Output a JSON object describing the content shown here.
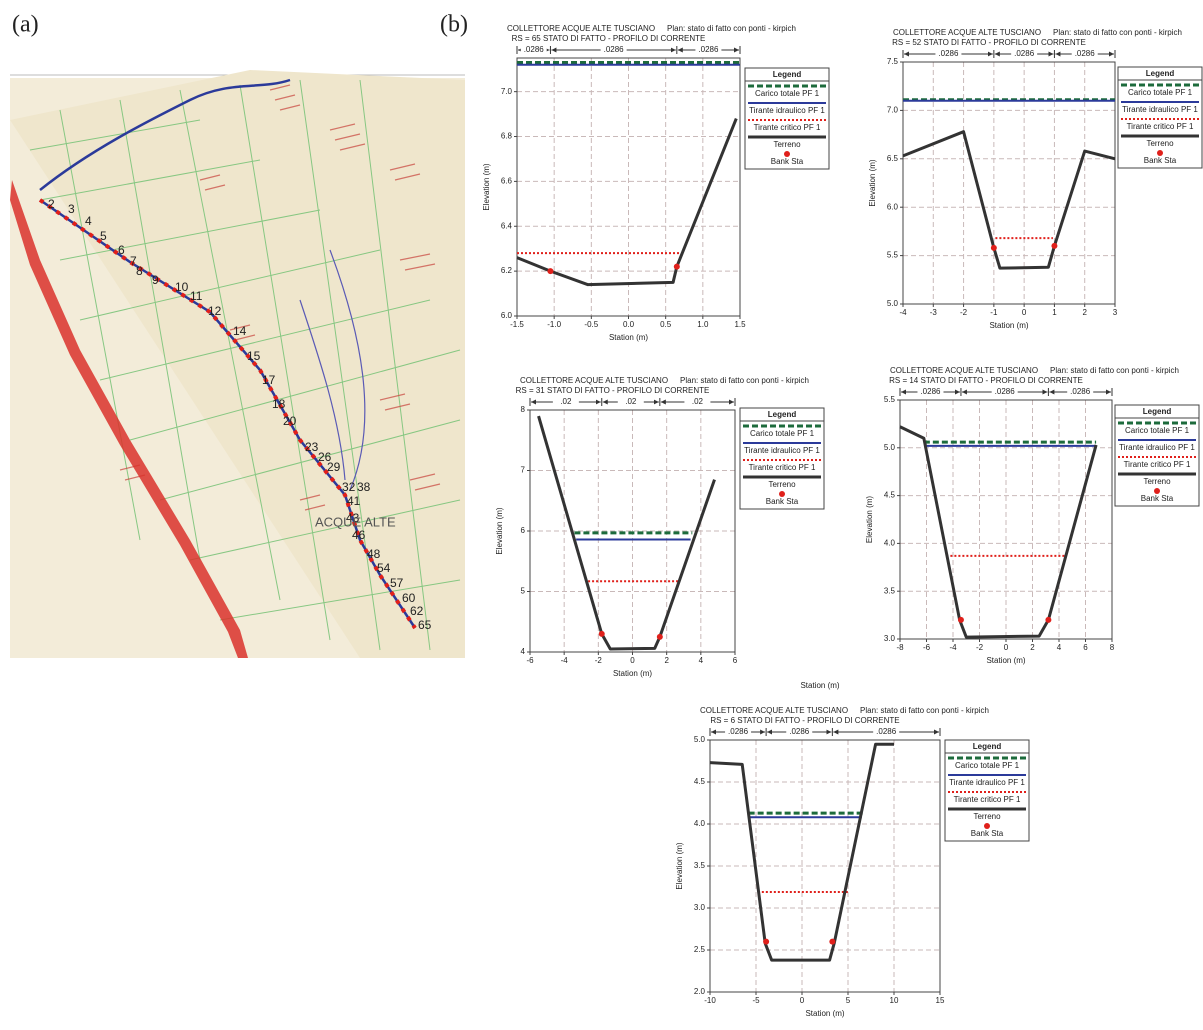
{
  "panels": {
    "a": "(a)",
    "b": "(b)"
  },
  "map": {
    "labels": [
      "2",
      "3",
      "4",
      "5",
      "6",
      "7",
      "8",
      "9",
      "10",
      "11",
      "12",
      "14",
      "15",
      "17",
      "18",
      "20",
      "23",
      "26",
      "29",
      "32",
      "38",
      "41",
      "43",
      "46",
      "48",
      "54",
      "57",
      "60",
      "62",
      "65"
    ],
    "place": "ACQUE ALTE"
  },
  "stray_label": "Station (m)",
  "chart_data": [
    {
      "type": "line",
      "title": "COLLETTORE ACQUE ALTE TUSCIANO",
      "plan": "Plan: stato di fatto con ponti - kirpich",
      "subtitle": "RS = 65  STATO DI FATTO - PROFILO DI CORRENTE",
      "xlabel": "Station (m)",
      "ylabel": "Elevation (m)",
      "legend_title": "Legend",
      "roughness": [
        ".0286",
        ".0286",
        ".0286"
      ],
      "xlim": [
        -1.5,
        1.5
      ],
      "ylim": [
        6.0,
        7.15
      ],
      "xticks": [
        -1.5,
        {
          "value": -1,
          "label": "-1.0"
        },
        -0.5,
        {
          "value": 0,
          "label": "0.0"
        },
        0.5,
        {
          "value": 1,
          "label": "1.0"
        },
        1.5
      ],
      "yticks": [
        {
          "value": 6,
          "label": "6.0"
        },
        6.2,
        6.4,
        6.6,
        6.8,
        {
          "value": 7,
          "label": "7.0"
        }
      ],
      "grid": true,
      "series": [
        {
          "name": "Carico totale PF 1",
          "color": "#1d6b3c",
          "style": "dashed",
          "x": [
            -1.5,
            1.5
          ],
          "values": [
            7.13,
            7.13
          ]
        },
        {
          "name": "Tirante idraulico PF 1",
          "color": "#2b3a9a",
          "style": "solid",
          "x": [
            -1.5,
            1.5
          ],
          "values": [
            7.12,
            7.12
          ]
        },
        {
          "name": "Tirante critico PF 1",
          "color": "#e0201b",
          "style": "dotted",
          "x": [
            -1.5,
            0.7
          ],
          "values": [
            6.28,
            6.28
          ]
        },
        {
          "name": "Terreno",
          "color": "#333333",
          "style": "thick",
          "x": [
            -1.5,
            -1.05,
            -0.55,
            0.6,
            0.65,
            1.45
          ],
          "values": [
            6.26,
            6.2,
            6.14,
            6.15,
            6.22,
            6.88
          ]
        },
        {
          "name": "Bank Sta",
          "color": "#e0201b",
          "style": "points",
          "x": [
            -1.05,
            0.65
          ],
          "values": [
            6.2,
            6.22
          ]
        }
      ]
    },
    {
      "type": "line",
      "title": "COLLETTORE ACQUE ALTE TUSCIANO",
      "plan": "Plan: stato di fatto con ponti - kirpich",
      "subtitle": "RS = 52  STATO DI FATTO - PROFILO DI CORRENTE",
      "xlabel": "Station (m)",
      "ylabel": "Elevation (m)",
      "legend_title": "Legend",
      "roughness": [
        ".0286",
        ".0286",
        ".0286"
      ],
      "xlim": [
        -4,
        3
      ],
      "ylim": [
        5.0,
        7.5
      ],
      "xticks": [
        -4,
        -3,
        -2,
        -1,
        0,
        1,
        2,
        3
      ],
      "yticks": [
        {
          "value": 5,
          "label": "5.0"
        },
        5.5,
        {
          "value": 6,
          "label": "6.0"
        },
        6.5,
        {
          "value": 7,
          "label": "7.0"
        },
        7.5
      ],
      "grid": true,
      "series": [
        {
          "name": "Carico totale PF 1",
          "color": "#1d6b3c",
          "style": "dashed",
          "x": [
            -4,
            3
          ],
          "values": [
            7.11,
            7.11
          ]
        },
        {
          "name": "Tirante idraulico PF 1",
          "color": "#2b3a9a",
          "style": "solid",
          "x": [
            -4,
            3
          ],
          "values": [
            7.1,
            7.1
          ]
        },
        {
          "name": "Tirante critico PF 1",
          "color": "#e0201b",
          "style": "dotted",
          "x": [
            -0.95,
            0.95
          ],
          "values": [
            5.68,
            5.68
          ]
        },
        {
          "name": "Terreno",
          "color": "#333333",
          "style": "thick",
          "x": [
            -4,
            -2,
            -1,
            -0.8,
            0.8,
            1,
            2,
            3
          ],
          "values": [
            6.53,
            6.78,
            5.58,
            5.37,
            5.38,
            5.6,
            6.58,
            6.5
          ]
        },
        {
          "name": "Bank Sta",
          "color": "#e0201b",
          "style": "points",
          "x": [
            -1,
            1
          ],
          "values": [
            5.58,
            5.6
          ]
        }
      ]
    },
    {
      "type": "line",
      "title": "COLLETTORE ACQUE ALTE TUSCIANO",
      "plan": "Plan: stato di fatto con ponti - kirpich",
      "subtitle": "RS = 31  STATO DI FATTO - PROFILO DI CORRENTE",
      "xlabel": "Station (m)",
      "ylabel": "Elevation (m)",
      "legend_title": "Legend",
      "roughness": [
        ".02",
        ".02",
        ".02"
      ],
      "xlim": [
        -6,
        6
      ],
      "ylim": [
        4,
        8
      ],
      "xticks": [
        -6,
        -4,
        -2,
        0,
        2,
        4,
        6
      ],
      "yticks": [
        4,
        5,
        6,
        7,
        8
      ],
      "grid": true,
      "series": [
        {
          "name": "Carico totale PF 1",
          "color": "#1d6b3c",
          "style": "dashed",
          "x": [
            -3.4,
            3.5
          ],
          "values": [
            5.97,
            5.97
          ]
        },
        {
          "name": "Tirante idraulico PF 1",
          "color": "#2b3a9a",
          "style": "solid",
          "x": [
            -3.3,
            3.4
          ],
          "values": [
            5.86,
            5.86
          ]
        },
        {
          "name": "Tirante critico PF 1",
          "color": "#e0201b",
          "style": "dotted",
          "x": [
            -2.6,
            2.7
          ],
          "values": [
            5.17,
            5.17
          ]
        },
        {
          "name": "Terreno",
          "color": "#333333",
          "style": "thick",
          "x": [
            -5.5,
            -1.8,
            -1.3,
            1.3,
            1.6,
            4.8
          ],
          "values": [
            7.9,
            4.3,
            4.05,
            4.06,
            4.25,
            6.85
          ]
        },
        {
          "name": "Bank Sta",
          "color": "#e0201b",
          "style": "points",
          "x": [
            -1.8,
            1.6
          ],
          "values": [
            4.3,
            4.25
          ]
        }
      ]
    },
    {
      "type": "line",
      "title": "COLLETTORE ACQUE ALTE TUSCIANO",
      "plan": "Plan: stato di fatto con ponti - kirpich",
      "subtitle": "RS = 14  STATO DI FATTO - PROFILO DI CORRENTE",
      "xlabel": "Station (m)",
      "ylabel": "Elevation (m)",
      "legend_title": "Legend",
      "roughness": [
        ".0286",
        ".0286",
        ".0286"
      ],
      "xlim": [
        -8,
        8
      ],
      "ylim": [
        3.0,
        5.5
      ],
      "xticks": [
        -8,
        -6,
        -4,
        -2,
        0,
        2,
        4,
        6,
        8
      ],
      "yticks": [
        {
          "value": 3,
          "label": "3.0"
        },
        3.5,
        {
          "value": 4,
          "label": "4.0"
        },
        4.5,
        {
          "value": 5,
          "label": "5.0"
        },
        5.5
      ],
      "grid": true,
      "series": [
        {
          "name": "Carico totale PF 1",
          "color": "#1d6b3c",
          "style": "dashed",
          "x": [
            -6.2,
            6.8
          ],
          "values": [
            5.06,
            5.06
          ]
        },
        {
          "name": "Tirante idraulico PF 1",
          "color": "#2b3a9a",
          "style": "solid",
          "x": [
            -6.1,
            6.8
          ],
          "values": [
            5.02,
            5.02
          ]
        },
        {
          "name": "Tirante critico PF 1",
          "color": "#e0201b",
          "style": "dotted",
          "x": [
            -4.5,
            4.5
          ],
          "values": [
            3.87,
            3.87
          ]
        },
        {
          "name": "Terreno",
          "color": "#333333",
          "style": "thick",
          "x": [
            -8,
            -6.2,
            -3.5,
            -3,
            2.5,
            3.2,
            6.8
          ],
          "values": [
            5.22,
            5.1,
            3.2,
            3.02,
            3.03,
            3.2,
            5.03
          ]
        },
        {
          "name": "Bank Sta",
          "color": "#e0201b",
          "style": "points",
          "x": [
            -3.4,
            3.2
          ],
          "values": [
            3.2,
            3.2
          ]
        }
      ]
    },
    {
      "type": "line",
      "title": "COLLETTORE ACQUE ALTE TUSCIANO",
      "plan": "Plan: stato di fatto con ponti - kirpich",
      "subtitle": "RS = 6  STATO DI FATTO - PROFILO DI CORRENTE",
      "xlabel": "Station (m)",
      "ylabel": "Elevation (m)",
      "legend_title": "Legend",
      "roughness": [
        ".0286",
        ".0286",
        ".0286"
      ],
      "xlim": [
        -10,
        15
      ],
      "ylim": [
        2.0,
        5.0
      ],
      "xticks": [
        -10,
        -5,
        0,
        5,
        10,
        15
      ],
      "yticks": [
        {
          "value": 2,
          "label": "2.0"
        },
        2.5,
        {
          "value": 3,
          "label": "3.0"
        },
        3.5,
        {
          "value": 4,
          "label": "4.0"
        },
        4.5,
        {
          "value": 5,
          "label": "5.0"
        }
      ],
      "grid": true,
      "series": [
        {
          "name": "Carico totale PF 1",
          "color": "#1d6b3c",
          "style": "dashed",
          "x": [
            -5.8,
            6.6
          ],
          "values": [
            4.13,
            4.13
          ]
        },
        {
          "name": "Tirante idraulico PF 1",
          "color": "#2b3a9a",
          "style": "solid",
          "x": [
            -5.7,
            6.5
          ],
          "values": [
            4.08,
            4.08
          ]
        },
        {
          "name": "Tirante critico PF 1",
          "color": "#e0201b",
          "style": "dotted",
          "x": [
            -4.8,
            5
          ],
          "values": [
            3.19,
            3.19
          ]
        },
        {
          "name": "Terreno",
          "color": "#333333",
          "style": "thick",
          "x": [
            -10,
            -6.5,
            -4,
            -3.3,
            3,
            3.5,
            8,
            10
          ],
          "values": [
            4.73,
            4.71,
            2.58,
            2.38,
            2.38,
            2.58,
            4.95,
            4.95
          ]
        },
        {
          "name": "Bank Sta",
          "color": "#e0201b",
          "style": "points",
          "x": [
            -3.9,
            3.3
          ],
          "values": [
            2.6,
            2.6
          ]
        }
      ]
    }
  ]
}
